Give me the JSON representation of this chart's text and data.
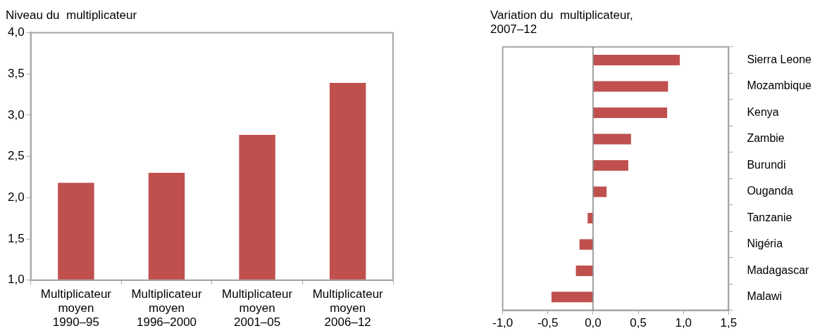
{
  "chart_data": [
    {
      "type": "bar",
      "title": "Niveau du  multiplicateur",
      "categories": [
        "Multiplicateur moyen 1990–95",
        "Multiplicateur moyen 1996–2000",
        "Multiplicateur moyen 2001–05",
        "Multiplicateur moyen 2006–12"
      ],
      "values": [
        2.18,
        2.3,
        2.76,
        3.39
      ],
      "color": "#c0504d",
      "ylim": [
        1,
        4
      ],
      "yticks": [
        {
          "value": 1,
          "label": "1,0"
        },
        {
          "value": 1.5,
          "label": "1,5"
        },
        {
          "value": 2,
          "label": "2,0"
        },
        {
          "value": 2.5,
          "label": "2,5"
        },
        {
          "value": 3,
          "label": "3,0"
        },
        {
          "value": 3.5,
          "label": "3,5"
        },
        {
          "value": 4,
          "label": "4,0"
        }
      ]
    },
    {
      "type": "bar",
      "orientation": "horizontal",
      "title": "Variation du  multiplicateur, 2007–12",
      "categories": [
        "Sierra Leone",
        "Mozambique",
        "Kenya",
        "Zambie",
        "Burundi",
        "Ouganda",
        "Tanzanie",
        "Nigéria",
        "Madagascar",
        "Malawi"
      ],
      "values": [
        0.96,
        0.83,
        0.82,
        0.42,
        0.39,
        0.15,
        -0.06,
        -0.15,
        -0.19,
        -0.46
      ],
      "color": "#c0504d",
      "xlim": [
        -1,
        1.5
      ],
      "xticks": [
        {
          "value": -1,
          "label": "-1,0"
        },
        {
          "value": -0.5,
          "label": "-0,5"
        },
        {
          "value": 0,
          "label": "0,0"
        },
        {
          "value": 0.5,
          "label": "0,5"
        },
        {
          "value": 1,
          "label": "1,0"
        },
        {
          "value": 1.5,
          "label": "1,5"
        }
      ]
    }
  ]
}
